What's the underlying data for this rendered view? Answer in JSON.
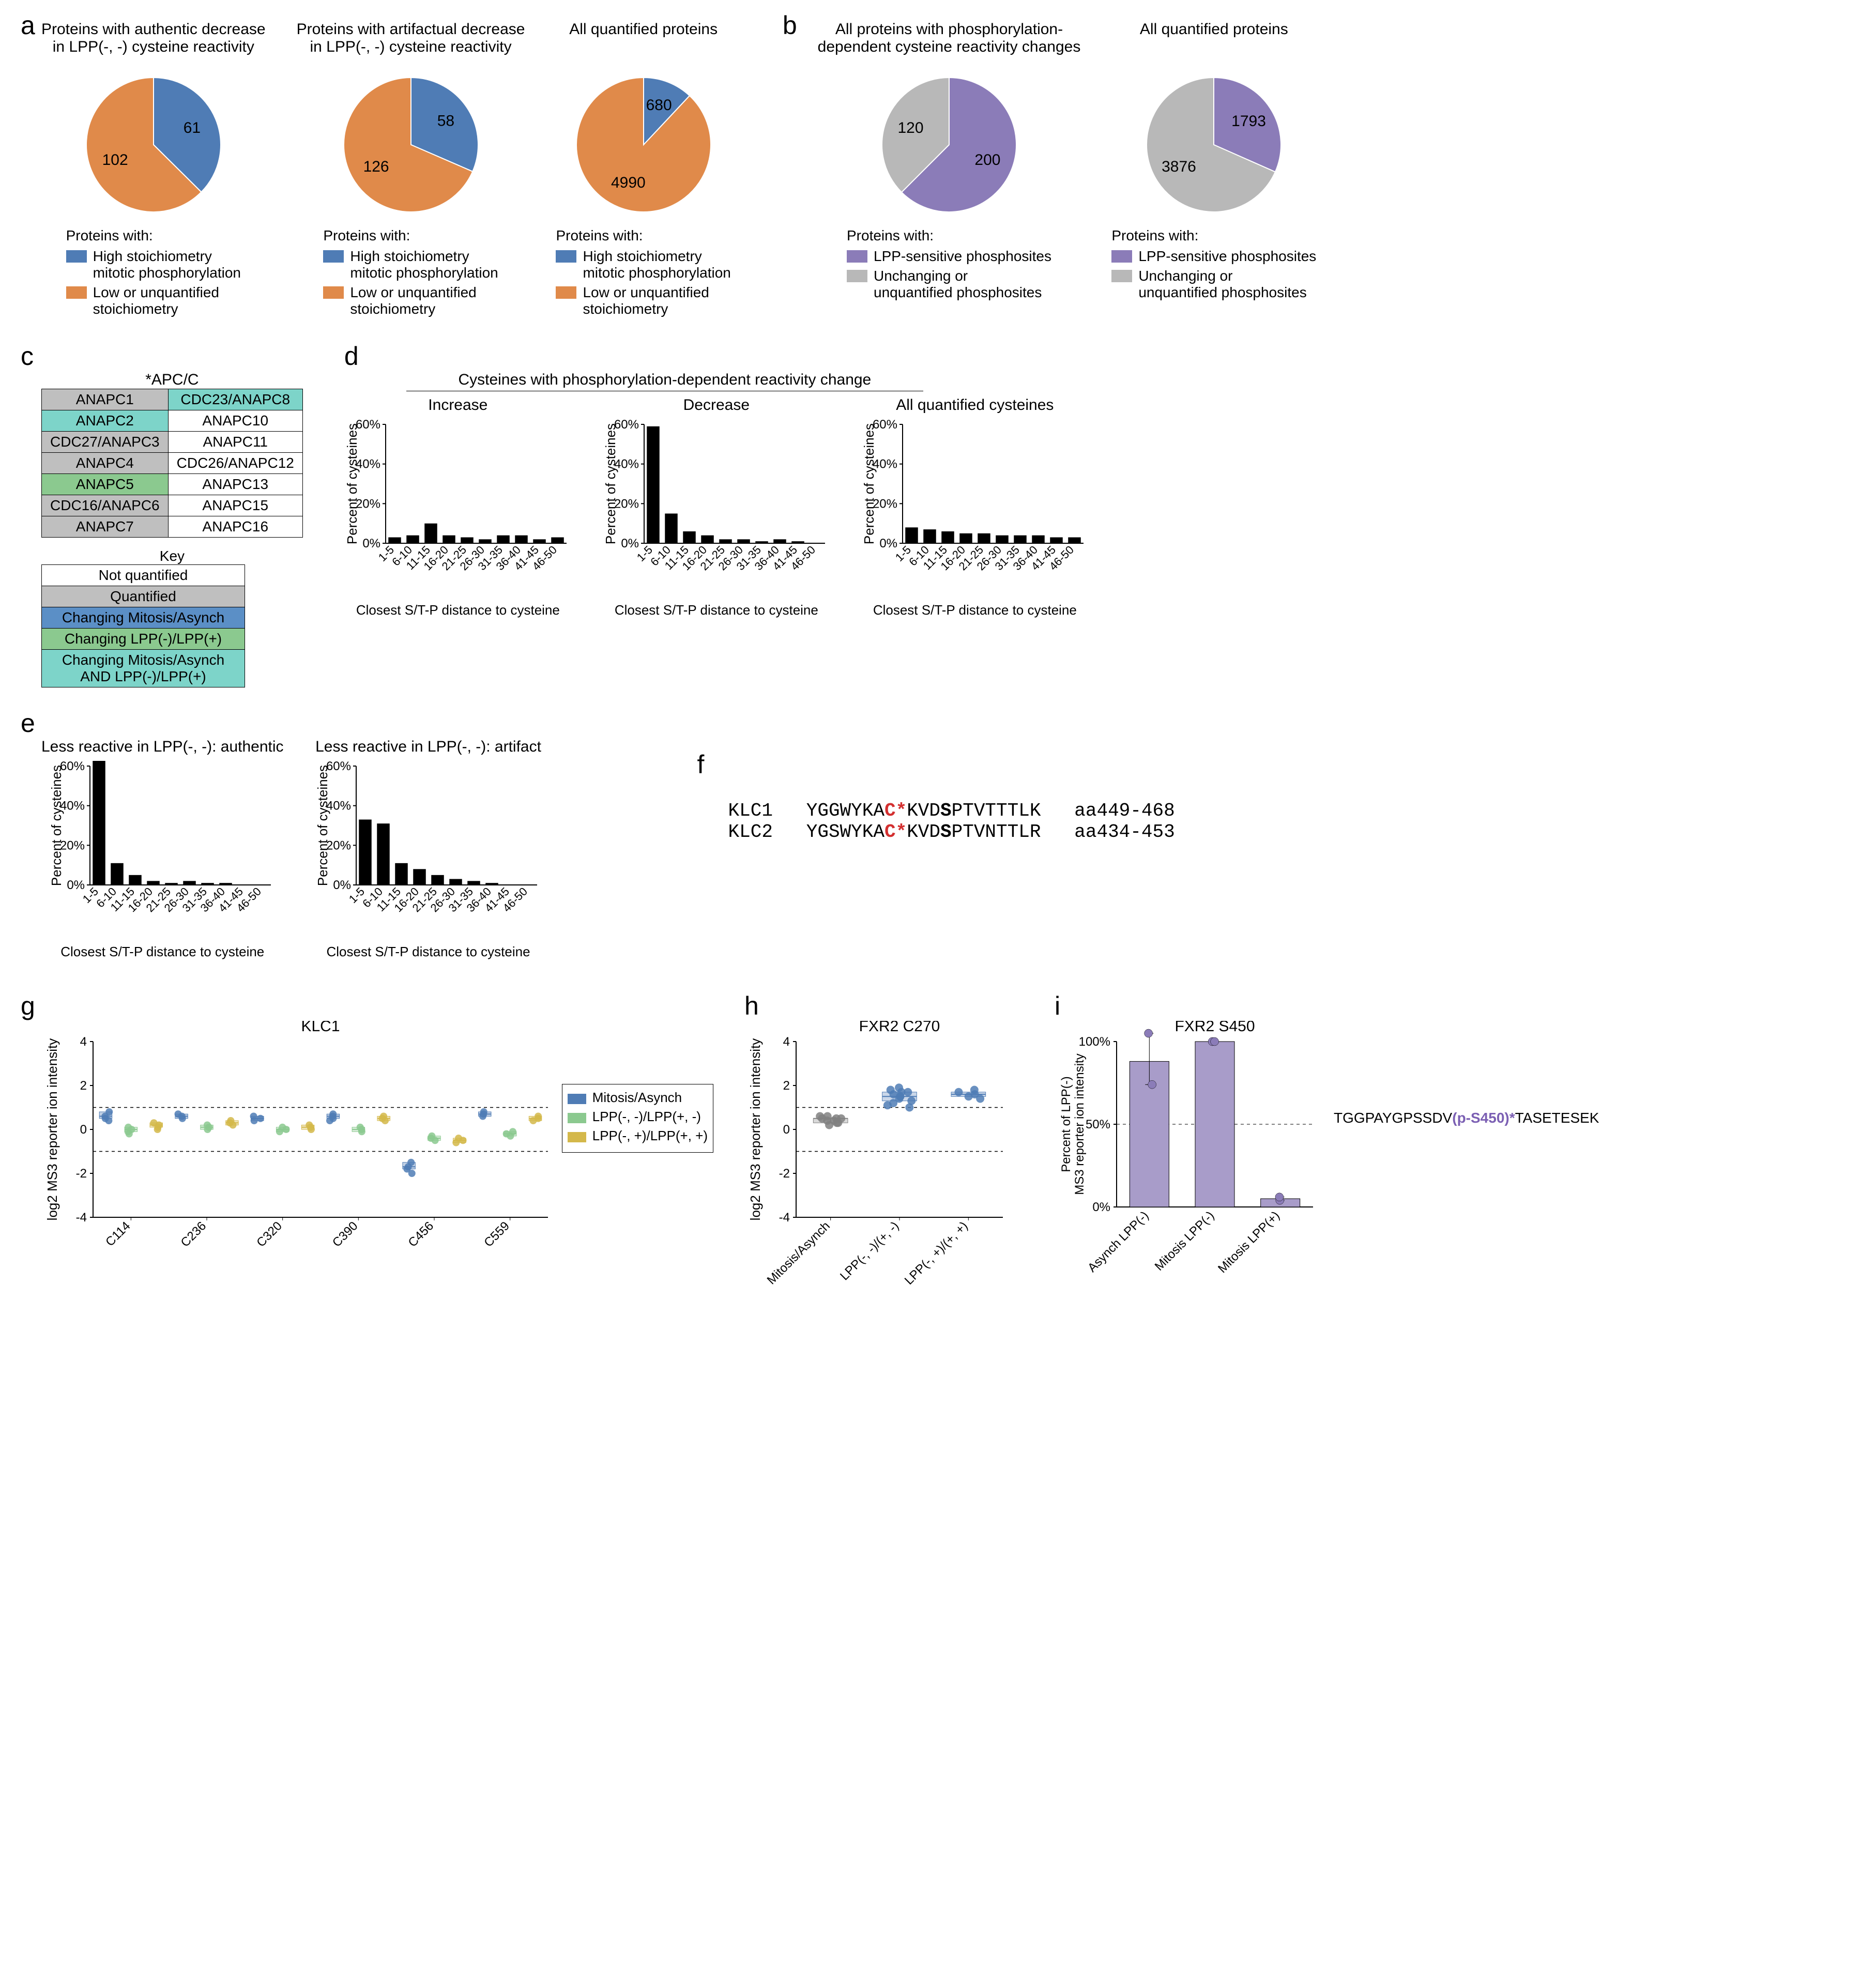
{
  "colors": {
    "blue": "#4f7cb5",
    "orange": "#e08a4a",
    "purple": "#8b7cb8",
    "grey": "#b8b8b8",
    "black": "#000000",
    "table_notquant": "#ffffff",
    "table_quant": "#bfbfbf",
    "table_mitosis": "#5b8fc6",
    "table_lpp": "#8bc98f",
    "table_both": "#7dd4c9"
  },
  "panel_a": {
    "label": "a",
    "pies": [
      {
        "title": "Proteins with authentic decrease\nin LPP(-, -) cysteine reactivity",
        "slices": [
          {
            "label": "61",
            "value": 61,
            "color_key": "blue"
          },
          {
            "label": "102",
            "value": 102,
            "color_key": "orange"
          }
        ],
        "legend_heading": "Proteins with:",
        "legend": [
          {
            "color_key": "blue",
            "text": "High stoichiometry\nmitotic phosphorylation"
          },
          {
            "color_key": "orange",
            "text": "Low or unquantified\nstoichiometry"
          }
        ]
      },
      {
        "title": "Proteins with artifactual decrease\nin LPP(-, -) cysteine reactivity",
        "slices": [
          {
            "label": "58",
            "value": 58,
            "color_key": "blue"
          },
          {
            "label": "126",
            "value": 126,
            "color_key": "orange"
          }
        ],
        "legend_heading": "Proteins with:",
        "legend": [
          {
            "color_key": "blue",
            "text": "High stoichiometry\nmitotic phosphorylation"
          },
          {
            "color_key": "orange",
            "text": "Low or unquantified\nstoichiometry"
          }
        ]
      },
      {
        "title": "All quantified proteins",
        "slices": [
          {
            "label": "680",
            "value": 680,
            "color_key": "blue"
          },
          {
            "label": "4990",
            "value": 4990,
            "color_key": "orange"
          }
        ],
        "legend_heading": "Proteins with:",
        "legend": [
          {
            "color_key": "blue",
            "text": "High stoichiometry\nmitotic phosphorylation"
          },
          {
            "color_key": "orange",
            "text": "Low or unquantified\nstoichiometry"
          }
        ]
      }
    ]
  },
  "panel_b": {
    "label": "b",
    "pies": [
      {
        "title": "All proteins with phosphorylation-\ndependent cysteine reactivity changes",
        "slices": [
          {
            "label": "200",
            "value": 200,
            "color_key": "purple"
          },
          {
            "label": "120",
            "value": 120,
            "color_key": "grey"
          }
        ],
        "legend_heading": "Proteins with:",
        "legend": [
          {
            "color_key": "purple",
            "text": "LPP-sensitive phosphosites"
          },
          {
            "color_key": "grey",
            "text": "Unchanging or\nunquantified phosphosites"
          }
        ]
      },
      {
        "title": "All quantified proteins",
        "slices": [
          {
            "label": "1793",
            "value": 1793,
            "color_key": "purple"
          },
          {
            "label": "3876",
            "value": 3876,
            "color_key": "grey"
          }
        ],
        "legend_heading": "Proteins with:",
        "legend": [
          {
            "color_key": "purple",
            "text": "LPP-sensitive phosphosites"
          },
          {
            "color_key": "grey",
            "text": "Unchanging or\nunquantified phosphosites"
          }
        ]
      }
    ]
  },
  "panel_c": {
    "label": "c",
    "title": "*APC/C",
    "rows": [
      [
        {
          "text": "ANAPC1",
          "bg": "table_quant"
        },
        {
          "text": "CDC23/ANAPC8",
          "bg": "table_both"
        }
      ],
      [
        {
          "text": "ANAPC2",
          "bg": "table_both"
        },
        {
          "text": "ANAPC10",
          "bg": "table_notquant"
        }
      ],
      [
        {
          "text": "CDC27/ANAPC3",
          "bg": "table_quant"
        },
        {
          "text": "ANAPC11",
          "bg": "table_notquant"
        }
      ],
      [
        {
          "text": "ANAPC4",
          "bg": "table_quant"
        },
        {
          "text": "CDC26/ANAPC12",
          "bg": "table_notquant"
        }
      ],
      [
        {
          "text": "ANAPC5",
          "bg": "table_lpp"
        },
        {
          "text": "ANAPC13",
          "bg": "table_notquant"
        }
      ],
      [
        {
          "text": "CDC16/ANAPC6",
          "bg": "table_quant"
        },
        {
          "text": "ANAPC15",
          "bg": "table_notquant"
        }
      ],
      [
        {
          "text": "ANAPC7",
          "bg": "table_quant"
        },
        {
          "text": "ANAPC16",
          "bg": "table_notquant"
        }
      ]
    ],
    "key_title": "Key",
    "key_rows": [
      {
        "text": "Not quantified",
        "bg": "table_notquant"
      },
      {
        "text": "Quantified",
        "bg": "table_quant"
      },
      {
        "text": "Changing Mitosis/Asynch",
        "bg": "table_mitosis"
      },
      {
        "text": "Changing LPP(-)/LPP(+)",
        "bg": "table_lpp"
      },
      {
        "text": "Changing Mitosis/Asynch\nAND LPP(-)/LPP(+)",
        "bg": "table_both"
      }
    ]
  },
  "panel_d": {
    "label": "d",
    "overall_title": "Cysteines with phosphorylation-dependent reactivity change",
    "x_label": "Closest S/T-P distance to cysteine",
    "y_label": "Percent of cysteines",
    "x_categories": [
      "1-5",
      "6-10",
      "11-15",
      "16-20",
      "21-25",
      "26-30",
      "31-35",
      "36-40",
      "41-45",
      "46-50"
    ],
    "y_ticks": [
      0,
      20,
      40,
      60
    ],
    "charts": [
      {
        "title": "Increase",
        "values": [
          3,
          4,
          10,
          4,
          3,
          2,
          4,
          4,
          2,
          3
        ]
      },
      {
        "title": "Decrease",
        "values": [
          59,
          15,
          6,
          4,
          2,
          2,
          1,
          2,
          1,
          0
        ]
      },
      {
        "title": "All quantified cysteines",
        "values": [
          8,
          7,
          6,
          5,
          5,
          4,
          4,
          4,
          3,
          3
        ]
      }
    ]
  },
  "panel_e": {
    "label": "e",
    "x_label": "Closest S/T-P distance to cysteine",
    "y_label": "Percent of cysteines",
    "x_categories": [
      "1-5",
      "6-10",
      "11-15",
      "16-20",
      "21-25",
      "26-30",
      "31-35",
      "36-40",
      "41-45",
      "46-50"
    ],
    "y_ticks": [
      0,
      20,
      40,
      60
    ],
    "charts": [
      {
        "title": "Less reactive in LPP(-, -):  authentic",
        "values": [
          69,
          11,
          5,
          2,
          1,
          2,
          1,
          1,
          0,
          0
        ]
      },
      {
        "title": "Less reactive in LPP(-, -):  artifact",
        "values": [
          33,
          31,
          11,
          8,
          5,
          3,
          2,
          1,
          0,
          0
        ]
      }
    ]
  },
  "panel_f": {
    "label": "f",
    "rows": [
      {
        "name": "KLC1",
        "pre": "YGGWYKA",
        "cys": "C*",
        "mid": "KVD",
        "ser": "S",
        "post": "PTVTTTLK",
        "range": "aa449-468"
      },
      {
        "name": "KLC2",
        "pre": "YGSWYKA",
        "cys": "C*",
        "mid": "KVD",
        "ser": "S",
        "post": "PTVNTTLR",
        "range": "aa434-453"
      }
    ]
  },
  "panel_g": {
    "label": "g",
    "title": "KLC1",
    "y_label": "log2 MS3 reporter ion intensity",
    "x_categories": [
      "C114",
      "C236",
      "C320",
      "C390",
      "C456",
      "C559"
    ],
    "y_ticks": [
      -4,
      -2,
      0,
      2,
      4
    ],
    "dashed_lines": [
      -1,
      1
    ],
    "series_colors": {
      "mitosis": "#4f7cb5",
      "lpp_minus": "#8bc98f",
      "lpp_plus": "#d4b84a"
    },
    "legend": [
      {
        "key": "mitosis",
        "text": "Mitosis/Asynch"
      },
      {
        "key": "lpp_minus",
        "text": "LPP(-, -)/LPP(+, -)"
      },
      {
        "key": "lpp_plus",
        "text": "LPP(-, +)/LPP(+, +)"
      }
    ],
    "data": {
      "C114": {
        "mitosis": [
          0.6,
          0.4,
          0.8,
          0.5
        ],
        "lpp_minus": [
          -0.1,
          0.0,
          0.1,
          -0.2
        ],
        "lpp_plus": [
          0.2,
          0.0,
          0.3,
          0.1
        ]
      },
      "C236": {
        "mitosis": [
          0.7,
          0.5,
          0.6
        ],
        "lpp_minus": [
          0.1,
          0.2,
          0.0
        ],
        "lpp_plus": [
          0.3,
          0.2,
          0.4
        ]
      },
      "C320": {
        "mitosis": [
          0.5,
          0.6,
          0.4
        ],
        "lpp_minus": [
          0.0,
          0.1,
          -0.1
        ],
        "lpp_plus": [
          0.1,
          0.2,
          0.0
        ]
      },
      "C390": {
        "mitosis": [
          0.6,
          0.5,
          0.7,
          0.4
        ],
        "lpp_minus": [
          0.0,
          -0.1,
          0.1
        ],
        "lpp_plus": [
          0.5,
          0.6,
          0.4
        ]
      },
      "C456": {
        "mitosis": [
          -1.8,
          -1.5,
          -2.0,
          -1.7
        ],
        "lpp_minus": [
          -0.5,
          -0.3,
          -0.4
        ],
        "lpp_plus": [
          -0.6,
          -0.4,
          -0.5
        ]
      },
      "C559": {
        "mitosis": [
          0.8,
          0.6,
          0.7
        ],
        "lpp_minus": [
          -0.2,
          -0.3,
          -0.1
        ],
        "lpp_plus": [
          0.5,
          0.4,
          0.6
        ]
      }
    }
  },
  "panel_h": {
    "label": "h",
    "title": "FXR2 C270",
    "y_label": "log2 MS3 reporter ion intensity",
    "x_categories": [
      "Mitosis/Asynch",
      "LPP(-, -)/(+, -)",
      "LPP(-, +)/(+, +)"
    ],
    "y_ticks": [
      -4,
      -2,
      0,
      2,
      4
    ],
    "dashed_lines": [
      -1,
      1
    ],
    "colors": {
      "grey": "#808080",
      "blue": "#4f7cb5"
    },
    "data": {
      "Mitosis/Asynch": {
        "color": "grey",
        "values": [
          0.3,
          0.5,
          0.4,
          0.6,
          0.2,
          0.5,
          0.3,
          0.4,
          0.5,
          0.6
        ]
      },
      "LPP(-, -)/(+, -)": {
        "color": "blue",
        "values": [
          1.0,
          1.4,
          1.7,
          1.8,
          1.2,
          1.5,
          1.6,
          1.9,
          1.3,
          1.1,
          1.7,
          1.5
        ]
      },
      "LPP(-, +)/(+, +)": {
        "color": "blue",
        "values": [
          1.5,
          1.7,
          1.6,
          1.8,
          1.4
        ]
      }
    }
  },
  "panel_i": {
    "label": "i",
    "title": "FXR2 S450",
    "y_label": "Percent of LPP(-)\nMS3 reporter ion intensity",
    "x_categories": [
      "Asynch LPP(-)",
      "Mitosis LPP(-)",
      "Mitosis LPP(+)"
    ],
    "y_ticks": [
      0,
      50,
      100
    ],
    "dashed_line": 50,
    "bar_color": "#a89cc9",
    "point_color": "#8b7cb8",
    "sequence_pre": "TGGPAYGPSSDV",
    "sequence_phos": "(p-S450)*",
    "sequence_post": "TASETESEK",
    "data": [
      {
        "label": "Asynch LPP(-)",
        "bar": 88,
        "points": [
          74,
          105
        ]
      },
      {
        "label": "Mitosis LPP(-)",
        "bar": 100,
        "points": [
          100,
          100
        ]
      },
      {
        "label": "Mitosis LPP(+)",
        "bar": 5,
        "points": [
          4,
          6
        ]
      }
    ]
  }
}
